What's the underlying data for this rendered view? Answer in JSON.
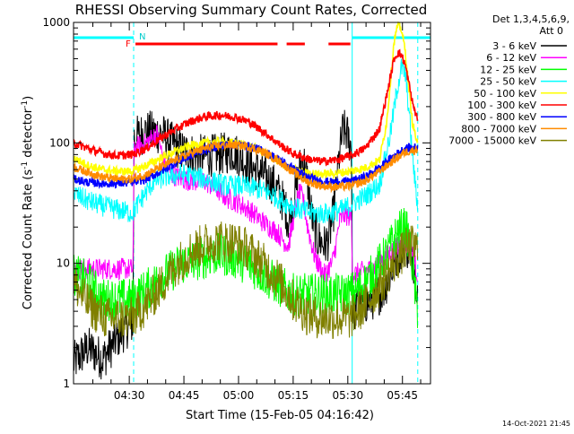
{
  "chart_data": {
    "type": "line",
    "title": "RHESSI Observing Summary Count Rates, Corrected",
    "xlabel": "Start Time (15-Feb-05 04:16:42)",
    "ylabel_main": "Corrected Count Rate (s",
    "ylabel_sup1": "-1",
    "ylabel_mid": " detector",
    "ylabel_sup2": "-1",
    "ylabel_end": ")",
    "y_scale": "log",
    "ylim": [
      1,
      1000
    ],
    "xlim_minutes": [
      0,
      98
    ],
    "x_ticks": [
      {
        "t": 15.3,
        "label": "04:30"
      },
      {
        "t": 30.3,
        "label": "04:45"
      },
      {
        "t": 45.3,
        "label": "05:00"
      },
      {
        "t": 60.3,
        "label": "05:15"
      },
      {
        "t": 75.3,
        "label": "05:30"
      },
      {
        "t": 90.3,
        "label": "05:45"
      }
    ],
    "y_ticks": [
      {
        "v": 1,
        "label": "1"
      },
      {
        "v": 10,
        "label": "10"
      },
      {
        "v": 100,
        "label": "100"
      },
      {
        "v": 1000,
        "label": "1000"
      }
    ],
    "legend_header": [
      "Det 1,3,4,5,6,9,",
      "Att 0"
    ],
    "legend_position": "right",
    "markers": {
      "F": "F",
      "N": "N"
    },
    "timestamp": "14-Oct-2021 21:45",
    "vlines_minutes": [
      16.5,
      76.5,
      94.5
    ],
    "series": [
      {
        "name": "3 - 6 keV",
        "color": "#000000",
        "points": [
          [
            0,
            1.5
          ],
          [
            4,
            2.0
          ],
          [
            8,
            1.6
          ],
          [
            12,
            2.4
          ],
          [
            15,
            3.0
          ],
          [
            16.3,
            3.2
          ],
          [
            16.6,
            110
          ],
          [
            20,
            125
          ],
          [
            24,
            120
          ],
          [
            27,
            100
          ],
          [
            30,
            85
          ],
          [
            33,
            80
          ],
          [
            36,
            78
          ],
          [
            40,
            80
          ],
          [
            44,
            85
          ],
          [
            48,
            65
          ],
          [
            52,
            55
          ],
          [
            55,
            45
          ],
          [
            57,
            35
          ],
          [
            58,
            30
          ],
          [
            59,
            22
          ],
          [
            60,
            28
          ],
          [
            61,
            40
          ],
          [
            62,
            60
          ],
          [
            63,
            75
          ],
          [
            64,
            55
          ],
          [
            65,
            30
          ],
          [
            66,
            20
          ],
          [
            67,
            16
          ],
          [
            68,
            15
          ],
          [
            69,
            14
          ],
          [
            70,
            16
          ],
          [
            71,
            22
          ],
          [
            72,
            38
          ],
          [
            73,
            80
          ],
          [
            74,
            130
          ],
          [
            75,
            120
          ],
          [
            76.3,
            90
          ],
          [
            76.6,
            4
          ],
          [
            79,
            4.5
          ],
          [
            82,
            5
          ],
          [
            85,
            6
          ],
          [
            87,
            8
          ],
          [
            89,
            12
          ],
          [
            91,
            14
          ],
          [
            93,
            12
          ],
          [
            94.5,
            6
          ]
        ]
      },
      {
        "name": "6 - 12 keV",
        "color": "#ff00ff",
        "points": [
          [
            0,
            9
          ],
          [
            5,
            9
          ],
          [
            10,
            9
          ],
          [
            16.3,
            9
          ],
          [
            16.6,
            90
          ],
          [
            20,
            100
          ],
          [
            23,
            120
          ],
          [
            25,
            65
          ],
          [
            27,
            55
          ],
          [
            30,
            50
          ],
          [
            33,
            48
          ],
          [
            36,
            48
          ],
          [
            39,
            42
          ],
          [
            42,
            35
          ],
          [
            45,
            32
          ],
          [
            48,
            28
          ],
          [
            50,
            25
          ],
          [
            52,
            22
          ],
          [
            54,
            20
          ],
          [
            56,
            18
          ],
          [
            58,
            15
          ],
          [
            59,
            14
          ],
          [
            60,
            20
          ],
          [
            61,
            30
          ],
          [
            62,
            38
          ],
          [
            63,
            35
          ],
          [
            64,
            22
          ],
          [
            65,
            16
          ],
          [
            66,
            12
          ],
          [
            67,
            10
          ],
          [
            68,
            9
          ],
          [
            69,
            8
          ],
          [
            70,
            9
          ],
          [
            71,
            10
          ],
          [
            72,
            14
          ],
          [
            73,
            22
          ],
          [
            74,
            25
          ],
          [
            75,
            25
          ],
          [
            76.3,
            24
          ],
          [
            76.6,
            8
          ],
          [
            79,
            8.5
          ],
          [
            82,
            9
          ],
          [
            85,
            11
          ],
          [
            88,
            13
          ],
          [
            91,
            15
          ],
          [
            93,
            12
          ],
          [
            94.5,
            8
          ]
        ]
      },
      {
        "name": "12 - 25 keV",
        "color": "#00ff00",
        "points": [
          [
            0,
            8
          ],
          [
            4,
            7
          ],
          [
            8,
            5
          ],
          [
            12,
            5
          ],
          [
            16,
            5
          ],
          [
            20,
            6
          ],
          [
            25,
            8
          ],
          [
            30,
            10
          ],
          [
            35,
            11
          ],
          [
            40,
            12
          ],
          [
            45,
            11
          ],
          [
            50,
            9
          ],
          [
            55,
            7
          ],
          [
            60,
            5.5
          ],
          [
            65,
            5.5
          ],
          [
            70,
            5.5
          ],
          [
            75,
            5.5
          ],
          [
            78,
            6
          ],
          [
            82,
            8
          ],
          [
            86,
            12
          ],
          [
            89,
            18
          ],
          [
            91,
            20
          ],
          [
            92,
            16
          ],
          [
            93,
            10
          ],
          [
            94,
            5
          ],
          [
            94.5,
            4
          ]
        ]
      },
      {
        "name": "25 - 50 keV",
        "color": "#00ffff",
        "points": [
          [
            0,
            38
          ],
          [
            4,
            33
          ],
          [
            8,
            30
          ],
          [
            12,
            28
          ],
          [
            16,
            26
          ],
          [
            18,
            32
          ],
          [
            22,
            48
          ],
          [
            26,
            53
          ],
          [
            30,
            55
          ],
          [
            34,
            52
          ],
          [
            38,
            48
          ],
          [
            42,
            44
          ],
          [
            46,
            44
          ],
          [
            50,
            42
          ],
          [
            54,
            38
          ],
          [
            58,
            32
          ],
          [
            62,
            28
          ],
          [
            66,
            26
          ],
          [
            70,
            26
          ],
          [
            74,
            28
          ],
          [
            77,
            32
          ],
          [
            80,
            36
          ],
          [
            84,
            45
          ],
          [
            87,
            120
          ],
          [
            89,
            300
          ],
          [
            90,
            420
          ],
          [
            91,
            380
          ],
          [
            92,
            200
          ],
          [
            93,
            80
          ],
          [
            94,
            40
          ],
          [
            94.5,
            28
          ]
        ]
      },
      {
        "name": "50 - 100 keV",
        "color": "#ffff00",
        "points": [
          [
            0,
            75
          ],
          [
            4,
            65
          ],
          [
            8,
            60
          ],
          [
            12,
            58
          ],
          [
            16,
            58
          ],
          [
            20,
            65
          ],
          [
            24,
            75
          ],
          [
            28,
            85
          ],
          [
            32,
            95
          ],
          [
            36,
            100
          ],
          [
            40,
            102
          ],
          [
            44,
            100
          ],
          [
            48,
            95
          ],
          [
            52,
            85
          ],
          [
            56,
            70
          ],
          [
            60,
            60
          ],
          [
            64,
            56
          ],
          [
            68,
            55
          ],
          [
            72,
            56
          ],
          [
            76,
            58
          ],
          [
            80,
            62
          ],
          [
            84,
            72
          ],
          [
            86,
            150
          ],
          [
            88,
            700
          ],
          [
            89,
            950
          ],
          [
            90,
            880
          ],
          [
            91,
            600
          ],
          [
            92,
            300
          ],
          [
            93,
            150
          ],
          [
            94,
            110
          ],
          [
            94.5,
            95
          ]
        ]
      },
      {
        "name": "100 - 300 keV",
        "color": "#ff0000",
        "points": [
          [
            0,
            100
          ],
          [
            4,
            90
          ],
          [
            8,
            82
          ],
          [
            12,
            78
          ],
          [
            16,
            80
          ],
          [
            20,
            90
          ],
          [
            24,
            110
          ],
          [
            28,
            130
          ],
          [
            32,
            150
          ],
          [
            36,
            165
          ],
          [
            40,
            170
          ],
          [
            44,
            165
          ],
          [
            48,
            150
          ],
          [
            52,
            125
          ],
          [
            56,
            100
          ],
          [
            60,
            82
          ],
          [
            64,
            74
          ],
          [
            68,
            70
          ],
          [
            72,
            72
          ],
          [
            76,
            78
          ],
          [
            80,
            90
          ],
          [
            84,
            130
          ],
          [
            86,
            250
          ],
          [
            88,
            500
          ],
          [
            89,
            560
          ],
          [
            90,
            540
          ],
          [
            91,
            450
          ],
          [
            92,
            320
          ],
          [
            93,
            220
          ],
          [
            94,
            170
          ],
          [
            94.5,
            160
          ]
        ]
      },
      {
        "name": "300 - 800 keV",
        "color": "#0000ff",
        "points": [
          [
            0,
            50
          ],
          [
            4,
            47
          ],
          [
            8,
            46
          ],
          [
            12,
            46
          ],
          [
            16,
            47
          ],
          [
            20,
            50
          ],
          [
            24,
            58
          ],
          [
            28,
            68
          ],
          [
            32,
            78
          ],
          [
            36,
            88
          ],
          [
            40,
            95
          ],
          [
            44,
            97
          ],
          [
            48,
            94
          ],
          [
            52,
            86
          ],
          [
            56,
            74
          ],
          [
            60,
            62
          ],
          [
            64,
            52
          ],
          [
            68,
            48
          ],
          [
            72,
            47
          ],
          [
            76,
            48
          ],
          [
            80,
            52
          ],
          [
            84,
            62
          ],
          [
            88,
            78
          ],
          [
            91,
            90
          ],
          [
            94.5,
            92
          ]
        ]
      },
      {
        "name": "800 - 7000 keV",
        "color": "#ff8c00",
        "points": [
          [
            0,
            63
          ],
          [
            4,
            57
          ],
          [
            8,
            52
          ],
          [
            12,
            50
          ],
          [
            16,
            50
          ],
          [
            20,
            55
          ],
          [
            24,
            63
          ],
          [
            28,
            72
          ],
          [
            32,
            82
          ],
          [
            36,
            90
          ],
          [
            40,
            95
          ],
          [
            44,
            96
          ],
          [
            48,
            93
          ],
          [
            52,
            84
          ],
          [
            56,
            72
          ],
          [
            60,
            58
          ],
          [
            64,
            48
          ],
          [
            68,
            44
          ],
          [
            72,
            43
          ],
          [
            76,
            44
          ],
          [
            80,
            48
          ],
          [
            84,
            58
          ],
          [
            88,
            72
          ],
          [
            91,
            84
          ],
          [
            94.5,
            88
          ]
        ]
      },
      {
        "name": "7000 - 15000 keV",
        "color": "#808000",
        "points": [
          [
            0,
            7
          ],
          [
            3,
            5
          ],
          [
            6,
            4
          ],
          [
            9,
            3.5
          ],
          [
            12,
            3.5
          ],
          [
            16,
            3.5
          ],
          [
            20,
            4.5
          ],
          [
            24,
            6.5
          ],
          [
            28,
            9.5
          ],
          [
            32,
            12.5
          ],
          [
            36,
            14.5
          ],
          [
            40,
            15.5
          ],
          [
            44,
            15
          ],
          [
            48,
            13
          ],
          [
            52,
            10
          ],
          [
            56,
            7.5
          ],
          [
            60,
            5
          ],
          [
            64,
            3.8
          ],
          [
            68,
            3.5
          ],
          [
            72,
            3.5
          ],
          [
            76,
            3.5
          ],
          [
            80,
            4.5
          ],
          [
            84,
            6.5
          ],
          [
            88,
            10
          ],
          [
            91,
            13
          ],
          [
            93,
            14
          ],
          [
            94.5,
            13
          ]
        ]
      }
    ]
  }
}
